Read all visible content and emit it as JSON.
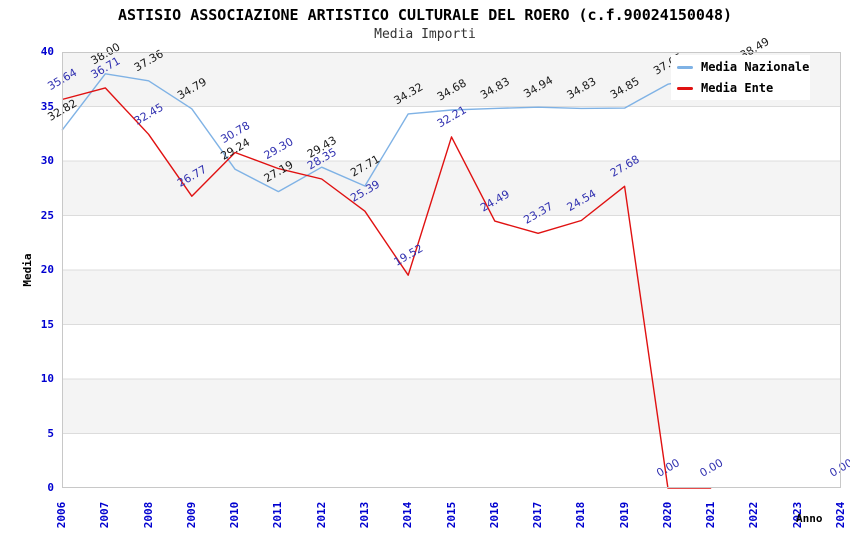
{
  "header": {
    "title": "ASTISIO ASSOCIAZIONE ARTISTICO CULTURALE DEL ROERO (c.f.90024150048)",
    "subtitle": "Media Importi"
  },
  "axes": {
    "y_label": "Media",
    "x_label": "Anno",
    "y_ticks": [
      "40",
      "35",
      "30",
      "25",
      "20",
      "15",
      "10",
      "5",
      "0"
    ],
    "x_ticks": [
      "2006",
      "2007",
      "2008",
      "2009",
      "2010",
      "2011",
      "2012",
      "2013",
      "2014",
      "2015",
      "2016",
      "2017",
      "2018",
      "2019",
      "2020",
      "2021",
      "2022",
      "2023",
      "2024"
    ],
    "tick_color": "#0000d0",
    "grid_color": "#dcdcdc",
    "band_color": "#f4f4f4",
    "border_color": "#c8c8c8"
  },
  "legend": {
    "position": "top-right",
    "items": [
      {
        "label": "Media Nazionale",
        "color": "#7fb2e5"
      },
      {
        "label": "Media Ente",
        "color": "#e01111"
      }
    ]
  },
  "chart_data": {
    "type": "line",
    "title": "ASTISIO ASSOCIAZIONE ARTISTICO CULTURALE DEL ROERO (c.f.90024150048)",
    "subtitle": "Media Importi",
    "xlabel": "Anno",
    "ylabel": "Media",
    "ylim": [
      0,
      40
    ],
    "ytick_step": 5,
    "grid": "horizontal-bands",
    "legend_position": "top-right",
    "x": [
      2006,
      2007,
      2008,
      2009,
      2010,
      2011,
      2012,
      2013,
      2014,
      2015,
      2016,
      2017,
      2018,
      2019,
      2020,
      2021,
      2022,
      2023,
      2024
    ],
    "series": [
      {
        "name": "Media Nazionale",
        "color": "#7fb2e5",
        "label_color": "#1a1a1a",
        "values": [
          32.82,
          38.0,
          37.36,
          34.79,
          29.24,
          27.19,
          29.43,
          27.71,
          34.32,
          34.68,
          34.83,
          34.94,
          34.83,
          34.85,
          37.05,
          37.75,
          38.49,
          null,
          null
        ],
        "labels": [
          "32.82",
          "38.00",
          "37.36",
          "34.79",
          "29.24",
          "27.19",
          "29.43",
          "27.71",
          "34.32",
          "34.68",
          "34.83",
          "34.94",
          "34.83",
          "34.85",
          "37.05",
          null,
          "38.49",
          null,
          null
        ]
      },
      {
        "name": "Media Ente",
        "color": "#e01111",
        "label_color": "#3030b0",
        "values": [
          35.64,
          36.71,
          32.45,
          26.77,
          30.78,
          29.3,
          28.35,
          25.39,
          19.52,
          32.21,
          24.49,
          23.37,
          24.54,
          27.68,
          0.0,
          0.0,
          null,
          null,
          0.0
        ],
        "labels": [
          "35.64",
          "36.71",
          "32.45",
          "26.77",
          "30.78",
          "29.30",
          "28.35",
          "25.39",
          "19.52",
          "32.21",
          "24.49",
          "23.37",
          "24.54",
          "27.68",
          "0.00",
          "0.00",
          null,
          null,
          "0.00"
        ]
      }
    ]
  }
}
